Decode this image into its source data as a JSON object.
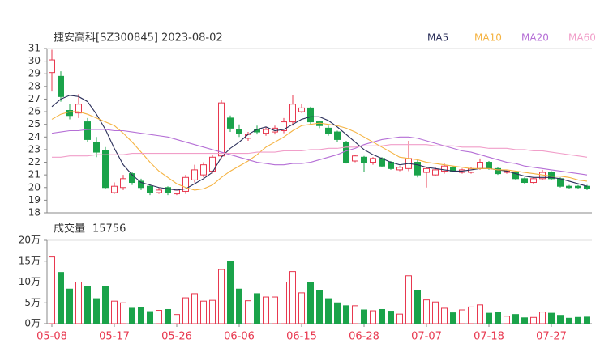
{
  "chart_data": [
    {
      "type": "candlestick",
      "title": "捷安高科[SZ300845] 2023-08-02",
      "categories": [
        "05-08",
        null,
        null,
        null,
        null,
        null,
        null,
        "05-17",
        null,
        null,
        null,
        null,
        null,
        null,
        "05-26",
        null,
        null,
        null,
        null,
        null,
        null,
        "06-06",
        null,
        null,
        null,
        null,
        null,
        null,
        "06-15",
        null,
        null,
        null,
        null,
        null,
        null,
        "06-28",
        null,
        null,
        null,
        null,
        null,
        null,
        "07-07",
        null,
        null,
        null,
        null,
        null,
        null,
        "07-18",
        null,
        null,
        null,
        null,
        null,
        null,
        "07-27",
        null,
        null,
        null,
        null
      ],
      "open": [
        29.1,
        28.8,
        26.1,
        25.9,
        25.2,
        23.6,
        22.9,
        19.6,
        20.0,
        21.1,
        20.5,
        20.1,
        19.6,
        20.0,
        19.5,
        19.7,
        20.6,
        21.0,
        21.3,
        22.5,
        25.5,
        24.6,
        23.9,
        24.6,
        24.3,
        24.4,
        24.5,
        25.2,
        26.0,
        26.3,
        25.2,
        24.7,
        24.4,
        23.6,
        22.1,
        22.4,
        22.0,
        22.3,
        22.0,
        21.4,
        21.5,
        22.0,
        21.2,
        21.0,
        21.3,
        21.6,
        21.2,
        21.2,
        21.5,
        22.0,
        21.5,
        21.2,
        21.2,
        20.7,
        20.4,
        20.7,
        21.2,
        20.7,
        20.1,
        20.1,
        20.1
      ],
      "high": [
        30.9,
        29.2,
        26.6,
        27.4,
        25.5,
        24.0,
        23.2,
        20.4,
        21.0,
        21.2,
        20.7,
        20.3,
        20.0,
        20.1,
        19.9,
        21.0,
        21.8,
        22.0,
        22.6,
        26.9,
        25.7,
        25.0,
        24.4,
        24.9,
        24.8,
        24.9,
        25.5,
        27.3,
        26.6,
        26.4,
        25.3,
        24.9,
        24.5,
        23.7,
        22.6,
        22.5,
        22.4,
        22.4,
        22.1,
        21.7,
        23.7,
        22.2,
        21.6,
        21.6,
        21.9,
        21.7,
        21.5,
        21.6,
        22.3,
        22.1,
        21.6,
        21.4,
        21.3,
        20.8,
        20.8,
        21.4,
        21.3,
        20.8,
        20.2,
        20.2,
        20.2
      ],
      "low": [
        27.6,
        26.8,
        25.4,
        25.5,
        23.6,
        22.4,
        19.9,
        19.5,
        19.8,
        20.2,
        19.8,
        19.4,
        19.5,
        19.4,
        19.4,
        19.5,
        20.4,
        20.8,
        21.1,
        22.3,
        24.4,
        24.0,
        23.7,
        24.2,
        24.1,
        24.2,
        24.3,
        24.9,
        25.9,
        25.0,
        24.7,
        24.1,
        23.6,
        21.9,
        22.0,
        21.2,
        21.8,
        21.6,
        21.4,
        21.3,
        21.3,
        20.8,
        20.0,
        20.9,
        21.1,
        21.2,
        21.1,
        21.1,
        21.4,
        21.4,
        21.0,
        21.1,
        20.6,
        20.3,
        20.3,
        20.6,
        20.6,
        20.0,
        19.9,
        19.9,
        19.8
      ],
      "close": [
        30.1,
        27.2,
        25.7,
        26.6,
        23.8,
        22.8,
        20.0,
        20.1,
        20.7,
        20.4,
        20.0,
        19.6,
        19.8,
        19.6,
        19.8,
        20.8,
        21.4,
        21.8,
        22.4,
        26.7,
        24.7,
        24.3,
        24.2,
        24.4,
        24.6,
        24.7,
        25.2,
        26.6,
        26.3,
        25.2,
        24.9,
        24.3,
        23.8,
        22.0,
        22.5,
        22.0,
        22.3,
        21.7,
        21.5,
        21.6,
        22.3,
        21.0,
        21.5,
        21.4,
        21.7,
        21.3,
        21.4,
        21.5,
        22.0,
        21.5,
        21.1,
        21.3,
        20.7,
        20.4,
        20.7,
        21.2,
        20.7,
        20.1,
        20.0,
        20.0,
        19.9
      ],
      "up_color": "#e8384f",
      "down_color": "#1aa34a",
      "series": [
        {
          "name": "MA5",
          "color": "#2b2f5a",
          "values": [
            26.4,
            27.0,
            27.3,
            27.2,
            26.8,
            25.8,
            24.6,
            23.1,
            21.8,
            21.0,
            20.4,
            20.2,
            20.0,
            19.9,
            19.8,
            19.9,
            20.3,
            20.7,
            21.2,
            22.4,
            23.1,
            23.6,
            24.2,
            24.6,
            24.8,
            24.5,
            24.6,
            25.0,
            25.4,
            25.6,
            25.6,
            25.3,
            24.8,
            24.2,
            23.6,
            23.0,
            22.6,
            22.3,
            22.0,
            21.8,
            21.9,
            21.8,
            21.6,
            21.5,
            21.4,
            21.3,
            21.3,
            21.4,
            21.5,
            21.5,
            21.4,
            21.3,
            21.1,
            20.9,
            20.8,
            20.8,
            20.8,
            20.7,
            20.5,
            20.3,
            20.1
          ]
        },
        {
          "name": "MA10",
          "color": "#f5b342",
          "values": [
            25.4,
            25.8,
            26.0,
            26.0,
            25.8,
            25.5,
            25.2,
            24.9,
            24.3,
            23.6,
            22.8,
            22.0,
            21.3,
            20.8,
            20.3,
            20.0,
            19.8,
            19.9,
            20.2,
            20.8,
            21.3,
            21.7,
            22.1,
            22.6,
            23.2,
            23.6,
            24.0,
            24.5,
            24.9,
            25.0,
            25.1,
            25.0,
            24.9,
            24.7,
            24.4,
            24.0,
            23.6,
            23.2,
            22.8,
            22.4,
            22.3,
            22.2,
            22.0,
            21.9,
            21.8,
            21.7,
            21.6,
            21.5,
            21.5,
            21.5,
            21.4,
            21.4,
            21.3,
            21.2,
            21.1,
            21.0,
            20.9,
            20.9,
            20.8,
            20.6,
            20.5
          ]
        },
        {
          "name": "MA20",
          "color": "#b56fd6",
          "values": [
            24.3,
            24.4,
            24.5,
            24.5,
            24.6,
            24.6,
            24.6,
            24.5,
            24.5,
            24.4,
            24.3,
            24.2,
            24.1,
            24.0,
            23.8,
            23.6,
            23.4,
            23.2,
            23.0,
            22.8,
            22.6,
            22.4,
            22.2,
            22.0,
            21.9,
            21.8,
            21.8,
            21.9,
            21.9,
            22.0,
            22.2,
            22.4,
            22.6,
            22.9,
            23.1,
            23.4,
            23.6,
            23.8,
            23.9,
            24.0,
            24.0,
            23.9,
            23.7,
            23.5,
            23.3,
            23.1,
            22.9,
            22.8,
            22.6,
            22.4,
            22.2,
            22.0,
            21.9,
            21.7,
            21.6,
            21.5,
            21.4,
            21.3,
            21.2,
            21.1,
            21.0
          ]
        },
        {
          "name": "MA60",
          "color": "#f19ec9",
          "values": [
            22.4,
            22.4,
            22.5,
            22.5,
            22.5,
            22.6,
            22.6,
            22.6,
            22.6,
            22.7,
            22.7,
            22.7,
            22.7,
            22.7,
            22.7,
            22.7,
            22.7,
            22.7,
            22.7,
            22.7,
            22.7,
            22.7,
            22.7,
            22.8,
            22.8,
            22.8,
            22.9,
            22.9,
            22.9,
            23.0,
            23.0,
            23.1,
            23.1,
            23.2,
            23.2,
            23.3,
            23.3,
            23.3,
            23.4,
            23.4,
            23.4,
            23.4,
            23.4,
            23.3,
            23.3,
            23.3,
            23.2,
            23.2,
            23.2,
            23.1,
            23.1,
            23.1,
            23.0,
            23.0,
            22.9,
            22.9,
            22.8,
            22.7,
            22.6,
            22.5,
            22.4
          ]
        }
      ],
      "ylim": [
        18,
        31
      ],
      "yticks": [
        18,
        19,
        20,
        21,
        22,
        23,
        24,
        25,
        26,
        27,
        28,
        29,
        30,
        31
      ]
    },
    {
      "type": "bar",
      "title": "成交量",
      "latest": 15756,
      "values": [
        16,
        12.3,
        8.3,
        10,
        9,
        6,
        9,
        5.4,
        5,
        3.7,
        3.8,
        2.9,
        3.2,
        3.4,
        2.2,
        6.2,
        7.2,
        5.4,
        5.6,
        13,
        15,
        8.3,
        5.5,
        7.2,
        6.4,
        6.4,
        10,
        12.5,
        7.4,
        10,
        8,
        6,
        5,
        4.3,
        4.3,
        3.3,
        3.1,
        3.4,
        3,
        2.3,
        11.5,
        8,
        5.7,
        5.2,
        3.7,
        2.6,
        3.3,
        4,
        4.5,
        2.5,
        2.7,
        1.8,
        2.2,
        1.4,
        1.5,
        2.8,
        2.5,
        2,
        1.3,
        1.5,
        1.5756
      ],
      "ylim": [
        0,
        20
      ],
      "yticks": [
        {
          "value": 0,
          "label": "0万"
        },
        {
          "value": 5,
          "label": "5万"
        },
        {
          "value": 10,
          "label": "10万"
        },
        {
          "value": 15,
          "label": "15万"
        },
        {
          "value": 20,
          "label": "20万"
        }
      ]
    }
  ]
}
